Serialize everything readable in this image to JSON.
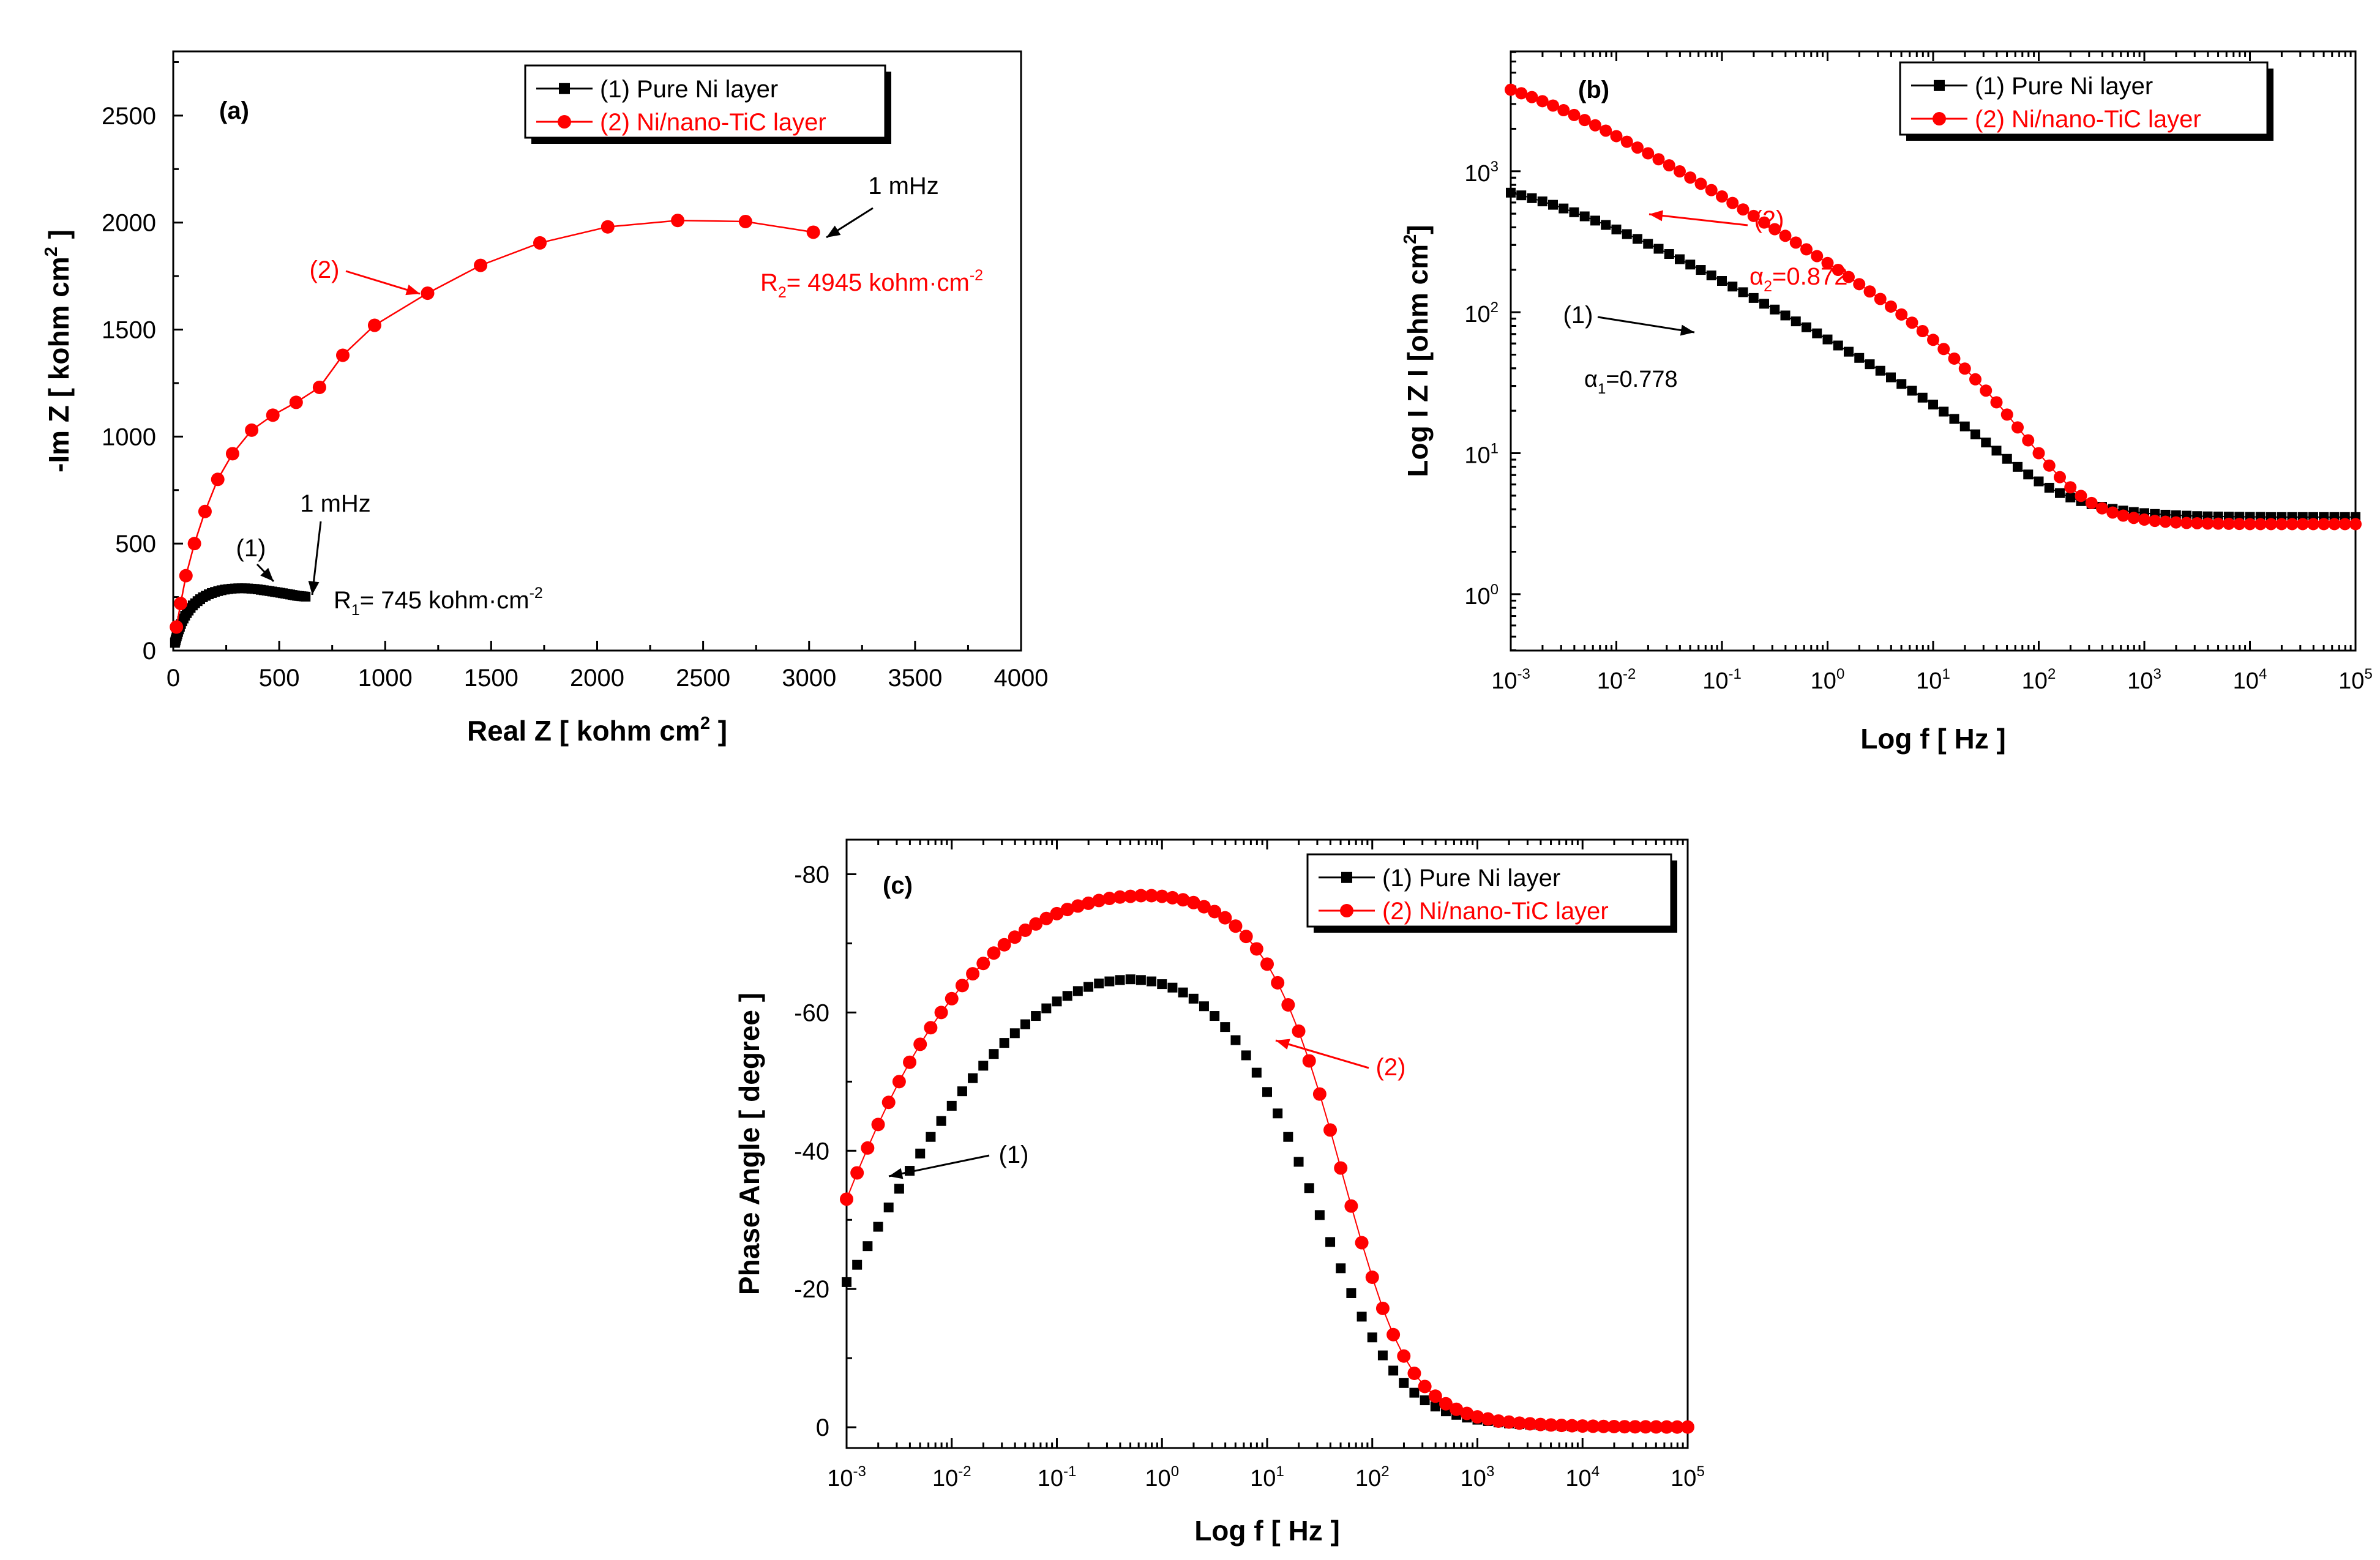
{
  "colors": {
    "series1": "#000000",
    "series2": "#ff0000",
    "axis": "#000000",
    "background": "#ffffff"
  },
  "chart_data": [
    {
      "panel": "(a)",
      "type": "scatter",
      "xlabel": "Real Z [ kohm cm",
      "xlabel_sup": "2",
      "xlabel_end": " ]",
      "ylabel": "-Im Z [ kohm cm",
      "ylabel_sup": "2",
      "ylabel_end": " ]",
      "xlim": [
        0,
        4000
      ],
      "ylim": [
        0,
        2800
      ],
      "x_ticks": [
        "0",
        "500",
        "1000",
        "1500",
        "2000",
        "2500",
        "3000",
        "3500",
        "4000"
      ],
      "y_ticks": [
        "0",
        "500",
        "1000",
        "1500",
        "2000",
        "2500"
      ],
      "legend": {
        "position": "top-right",
        "entries": [
          "(1) Pure Ni layer",
          "(2) Ni/nano-TiC layer"
        ]
      },
      "annotations": {
        "s1_label": "(1)",
        "s1_freq": "1 mHz",
        "s1_r_pre": "R",
        "s1_r_sub": "1",
        "s1_r_post": "= 745 kohm",
        "s1_r_unit": "cm",
        "s1_r_sup": "-2",
        "s2_label": "(2)",
        "s2_freq": "1 mHz",
        "s2_r_pre": "R",
        "s2_r_sub": "2",
        "s2_r_post": "= 4945 kohm",
        "s2_r_unit": "cm",
        "s2_r_sup": "-2"
      },
      "series": [
        {
          "name": "(1) Pure Ni layer",
          "x": [
            8.1,
            9.7,
            11.6,
            13.8,
            16.4,
            19.4,
            22.9,
            26.9,
            31.4,
            36.6,
            42.4,
            48.9,
            56.1,
            64.0,
            72.7,
            82.1,
            92.3,
            103.2,
            114.8,
            127.1,
            140.0,
            153.5,
            167.6,
            182.1,
            197.0,
            212.2,
            227.8,
            243.5,
            259.4,
            275.3,
            291.2,
            307.0,
            322.8,
            338.4,
            353.8,
            368.9,
            383.8,
            398.5,
            412.9,
            427.0,
            440.8,
            454.2,
            467.4,
            480.3,
            492.9,
            505.2,
            517.2,
            529.0,
            540.5,
            551.8,
            562.9,
            573.7,
            584.3,
            594.7,
            604.8,
            614.8,
            624.5
          ],
          "y": [
            36,
            42,
            49,
            57,
            66,
            76,
            87,
            99,
            111,
            124,
            137,
            150,
            163,
            175,
            187,
            199,
            211,
            221,
            231,
            240,
            249,
            256,
            263,
            269,
            274,
            278,
            282,
            285,
            287,
            289,
            290,
            291,
            291,
            291,
            290,
            289,
            288,
            286,
            284,
            282,
            280,
            278,
            276,
            274,
            272,
            270,
            268,
            266,
            264,
            262,
            260,
            258,
            256,
            255,
            254,
            253,
            252
          ]
        },
        {
          "name": "(2) Ni/nano-TiC layer",
          "x": [
            15,
            35,
            60,
            100,
            150,
            210,
            280,
            370,
            470,
            580,
            690,
            800,
            950,
            1200,
            1450,
            1730,
            2050,
            2380,
            2700,
            3020
          ],
          "y": [
            110,
            220,
            350,
            500,
            650,
            800,
            920,
            1030,
            1100,
            1160,
            1230,
            1380,
            1520,
            1670,
            1800,
            1905,
            1980,
            2010,
            2005,
            1955
          ]
        }
      ]
    },
    {
      "panel": "(b)",
      "type": "scatter",
      "xscale": "log",
      "yscale": "log",
      "xlabel": "Log f  [ Hz ]",
      "ylabel": "Log I Z I  [ohm cm",
      "ylabel_sup": "2",
      "ylabel_end": "]",
      "xlim": [
        -3,
        5
      ],
      "ylim": [
        -0.4,
        3.85
      ],
      "x_ticks": [
        {
          "b": "10",
          "e": "-3"
        },
        {
          "b": "10",
          "e": "-2"
        },
        {
          "b": "10",
          "e": "-1"
        },
        {
          "b": "10",
          "e": "0"
        },
        {
          "b": "10",
          "e": "1"
        },
        {
          "b": "10",
          "e": "2"
        },
        {
          "b": "10",
          "e": "3"
        },
        {
          "b": "10",
          "e": "4"
        },
        {
          "b": "10",
          "e": "5"
        }
      ],
      "y_ticks": [
        {
          "b": "10",
          "e": "0"
        },
        {
          "b": "10",
          "e": "1"
        },
        {
          "b": "10",
          "e": "2"
        },
        {
          "b": "10",
          "e": "3"
        }
      ],
      "legend": {
        "position": "top-right",
        "entries": [
          "(1) Pure Ni layer",
          "(2) Ni/nano-TiC layer"
        ]
      },
      "annotations": {
        "s1_label": "(1)",
        "s1_alpha_sym": "α",
        "s1_alpha_sub": "1",
        "s1_alpha_val": "=0.778",
        "s2_label": "(2)",
        "s2_alpha_sym": "α",
        "s2_alpha_sub": "2",
        "s2_alpha_val": "=0.872"
      },
      "series": [
        {
          "name": "(1) Pure Ni layer",
          "note": "log10(f) vs log10(|Z|)",
          "x": [
            -3,
            -2.9,
            -2.8,
            -2.7,
            -2.6,
            -2.5,
            -2.4,
            -2.3,
            -2.2,
            -2.1,
            -2.0,
            -1.9,
            -1.8,
            -1.7,
            -1.6,
            -1.5,
            -1.4,
            -1.3,
            -1.2,
            -1.1,
            -1.0,
            -0.9,
            -0.8,
            -0.7,
            -0.6,
            -0.5,
            -0.4,
            -0.3,
            -0.2,
            -0.1,
            0.0,
            0.1,
            0.2,
            0.3,
            0.4,
            0.5,
            0.6,
            0.7,
            0.8,
            0.9,
            1.0,
            1.1,
            1.2,
            1.3,
            1.4,
            1.5,
            1.6,
            1.7,
            1.8,
            1.9,
            2.0,
            2.1,
            2.2,
            2.3,
            2.4,
            2.5,
            2.6,
            2.7,
            2.8,
            2.9,
            3.0,
            3.1,
            3.2,
            3.3,
            3.4,
            3.5,
            3.6,
            3.7,
            3.8,
            3.9,
            4.0,
            4.1,
            4.2,
            4.3,
            4.4,
            4.5,
            4.6,
            4.7,
            4.8,
            4.9,
            5.0
          ],
          "y": [
            2.848,
            2.829,
            2.809,
            2.786,
            2.762,
            2.736,
            2.709,
            2.68,
            2.65,
            2.619,
            2.587,
            2.554,
            2.52,
            2.485,
            2.45,
            2.413,
            2.376,
            2.338,
            2.3,
            2.261,
            2.222,
            2.182,
            2.142,
            2.101,
            2.06,
            2.019,
            1.977,
            1.935,
            1.893,
            1.85,
            1.807,
            1.764,
            1.72,
            1.676,
            1.631,
            1.585,
            1.538,
            1.491,
            1.443,
            1.394,
            1.345,
            1.295,
            1.243,
            1.19,
            1.134,
            1.076,
            1.018,
            0.96,
            0.903,
            0.849,
            0.8,
            0.755,
            0.717,
            0.686,
            0.66,
            0.638,
            0.62,
            0.605,
            0.593,
            0.583,
            0.575,
            0.569,
            0.564,
            0.56,
            0.557,
            0.554,
            0.552,
            0.551,
            0.55,
            0.549,
            0.548,
            0.548,
            0.547,
            0.547,
            0.547,
            0.547,
            0.547,
            0.547,
            0.547,
            0.547,
            0.547
          ]
        },
        {
          "name": "(2) Ni/nano-TiC layer",
          "note": "log10(f) vs log10(|Z|)",
          "x": [
            -3,
            -2.9,
            -2.8,
            -2.7,
            -2.6,
            -2.5,
            -2.4,
            -2.3,
            -2.2,
            -2.1,
            -2.0,
            -1.9,
            -1.8,
            -1.7,
            -1.6,
            -1.5,
            -1.4,
            -1.3,
            -1.2,
            -1.1,
            -1.0,
            -0.9,
            -0.8,
            -0.7,
            -0.6,
            -0.5,
            -0.4,
            -0.3,
            -0.2,
            -0.1,
            0.0,
            0.1,
            0.2,
            0.3,
            0.4,
            0.5,
            0.6,
            0.7,
            0.8,
            0.9,
            1.0,
            1.1,
            1.2,
            1.3,
            1.4,
            1.5,
            1.6,
            1.7,
            1.8,
            1.9,
            2.0,
            2.1,
            2.2,
            2.3,
            2.4,
            2.5,
            2.6,
            2.7,
            2.8,
            2.9,
            3.0,
            3.1,
            3.2,
            3.3,
            3.4,
            3.5,
            3.6,
            3.7,
            3.8,
            3.9,
            4.0,
            4.1,
            4.2,
            4.3,
            4.4,
            4.5,
            4.6,
            4.7,
            4.8,
            4.9,
            5.0
          ],
          "y": [
            3.578,
            3.553,
            3.526,
            3.497,
            3.466,
            3.433,
            3.399,
            3.363,
            3.326,
            3.288,
            3.249,
            3.209,
            3.168,
            3.127,
            3.085,
            3.042,
            2.999,
            2.955,
            2.911,
            2.866,
            2.821,
            2.775,
            2.729,
            2.683,
            2.636,
            2.589,
            2.542,
            2.494,
            2.446,
            2.398,
            2.349,
            2.3,
            2.25,
            2.199,
            2.147,
            2.094,
            2.04,
            1.984,
            1.926,
            1.866,
            1.804,
            1.739,
            1.671,
            1.6,
            1.524,
            1.444,
            1.361,
            1.274,
            1.183,
            1.091,
            1.0,
            0.912,
            0.83,
            0.758,
            0.697,
            0.647,
            0.609,
            0.579,
            0.557,
            0.541,
            0.529,
            0.52,
            0.514,
            0.509,
            0.505,
            0.503,
            0.501,
            0.5,
            0.499,
            0.498,
            0.497,
            0.497,
            0.497,
            0.497,
            0.497,
            0.497,
            0.497,
            0.497,
            0.497,
            0.497,
            0.497
          ]
        }
      ]
    },
    {
      "panel": "(c)",
      "type": "scatter",
      "xscale": "log",
      "xlabel": "Log f  [ Hz ]",
      "ylabel": "Phase Angle [ degree ]",
      "xlim": [
        -3,
        5
      ],
      "ylim": [
        3,
        -85
      ],
      "x_ticks": [
        {
          "b": "10",
          "e": "-3"
        },
        {
          "b": "10",
          "e": "-2"
        },
        {
          "b": "10",
          "e": "-1"
        },
        {
          "b": "10",
          "e": "0"
        },
        {
          "b": "10",
          "e": "1"
        },
        {
          "b": "10",
          "e": "2"
        },
        {
          "b": "10",
          "e": "3"
        },
        {
          "b": "10",
          "e": "4"
        },
        {
          "b": "10",
          "e": "5"
        }
      ],
      "y_ticks": [
        "0",
        "-20",
        "-40",
        "-60",
        "-80"
      ],
      "legend": {
        "position": "top-right",
        "entries": [
          "(1) Pure Ni layer",
          "(2) Ni/nano-TiC layer"
        ]
      },
      "annotations": {
        "s1_label": "(1)",
        "s2_label": "(2)"
      },
      "series": [
        {
          "name": "(1) Pure Ni layer",
          "x": [
            -3,
            -2.9,
            -2.8,
            -2.7,
            -2.6,
            -2.5,
            -2.4,
            -2.3,
            -2.2,
            -2.1,
            -2.0,
            -1.9,
            -1.8,
            -1.7,
            -1.6,
            -1.5,
            -1.4,
            -1.3,
            -1.2,
            -1.1,
            -1.0,
            -0.9,
            -0.8,
            -0.7,
            -0.6,
            -0.5,
            -0.4,
            -0.3,
            -0.2,
            -0.1,
            0.0,
            0.1,
            0.2,
            0.3,
            0.4,
            0.5,
            0.6,
            0.7,
            0.8,
            0.9,
            1.0,
            1.1,
            1.2,
            1.3,
            1.4,
            1.5,
            1.6,
            1.7,
            1.8,
            1.9,
            2.0,
            2.1,
            2.2,
            2.3,
            2.4,
            2.5,
            2.6,
            2.7,
            2.8,
            2.9,
            3.0,
            3.1,
            3.2,
            3.3,
            3.4,
            3.5,
            3.6,
            3.7,
            3.8,
            3.9,
            4.0,
            4.1,
            4.2,
            4.3,
            4.4,
            4.5,
            4.6,
            4.7,
            4.8,
            4.9,
            5.0
          ],
          "y": [
            -21.0,
            -23.5,
            -26.2,
            -29.0,
            -31.8,
            -34.5,
            -37.1,
            -39.6,
            -42.0,
            -44.3,
            -46.5,
            -48.6,
            -50.5,
            -52.3,
            -54.0,
            -55.6,
            -57.0,
            -58.3,
            -59.5,
            -60.6,
            -61.6,
            -62.4,
            -63.1,
            -63.7,
            -64.2,
            -64.5,
            -64.7,
            -64.8,
            -64.7,
            -64.5,
            -64.1,
            -63.6,
            -62.9,
            -62.0,
            -60.9,
            -59.5,
            -57.9,
            -56.0,
            -53.8,
            -51.3,
            -48.5,
            -45.4,
            -42.0,
            -38.4,
            -34.6,
            -30.7,
            -26.8,
            -23.0,
            -19.4,
            -16.0,
            -13.0,
            -10.4,
            -8.2,
            -6.4,
            -5.0,
            -3.9,
            -3.0,
            -2.3,
            -1.8,
            -1.4,
            -1.1,
            -0.9,
            -0.7,
            -0.55,
            -0.45,
            -0.38,
            -0.3,
            -0.25,
            -0.2,
            -0.17,
            -0.14,
            -0.12,
            -0.1,
            -0.08,
            -0.07,
            -0.06,
            -0.05,
            -0.04,
            -0.03,
            -0.02,
            -0.02
          ]
        },
        {
          "name": "(2) Ni/nano-TiC layer",
          "x": [
            -3,
            -2.9,
            -2.8,
            -2.7,
            -2.6,
            -2.5,
            -2.4,
            -2.3,
            -2.2,
            -2.1,
            -2.0,
            -1.9,
            -1.8,
            -1.7,
            -1.6,
            -1.5,
            -1.4,
            -1.3,
            -1.2,
            -1.1,
            -1.0,
            -0.9,
            -0.8,
            -0.7,
            -0.6,
            -0.5,
            -0.4,
            -0.3,
            -0.2,
            -0.1,
            0.0,
            0.1,
            0.2,
            0.3,
            0.4,
            0.5,
            0.6,
            0.7,
            0.8,
            0.9,
            1.0,
            1.1,
            1.2,
            1.3,
            1.4,
            1.5,
            1.6,
            1.7,
            1.8,
            1.9,
            2.0,
            2.1,
            2.2,
            2.3,
            2.4,
            2.5,
            2.6,
            2.7,
            2.8,
            2.9,
            3.0,
            3.1,
            3.2,
            3.3,
            3.4,
            3.5,
            3.6,
            3.7,
            3.8,
            3.9,
            4.0,
            4.1,
            4.2,
            4.3,
            4.4,
            4.5,
            4.6,
            4.7,
            4.8,
            4.9,
            5.0
          ],
          "y": [
            -33.0,
            -36.8,
            -40.4,
            -43.8,
            -47.0,
            -50.0,
            -52.8,
            -55.4,
            -57.8,
            -60.0,
            -62.0,
            -63.9,
            -65.6,
            -67.1,
            -68.6,
            -69.8,
            -70.9,
            -71.9,
            -72.8,
            -73.6,
            -74.3,
            -74.9,
            -75.4,
            -75.8,
            -76.2,
            -76.5,
            -76.7,
            -76.8,
            -76.9,
            -76.9,
            -76.8,
            -76.6,
            -76.3,
            -75.9,
            -75.3,
            -74.6,
            -73.7,
            -72.5,
            -71.0,
            -69.2,
            -67.0,
            -64.3,
            -61.1,
            -57.3,
            -53.0,
            -48.2,
            -43.0,
            -37.5,
            -32.0,
            -26.7,
            -21.7,
            -17.2,
            -13.4,
            -10.3,
            -7.8,
            -5.9,
            -4.5,
            -3.4,
            -2.6,
            -2.0,
            -1.5,
            -1.2,
            -0.9,
            -0.75,
            -0.6,
            -0.5,
            -0.4,
            -0.33,
            -0.27,
            -0.22,
            -0.18,
            -0.15,
            -0.12,
            -0.1,
            -0.08,
            -0.07,
            -0.06,
            -0.05,
            -0.04,
            -0.03,
            -0.03
          ]
        }
      ]
    }
  ]
}
